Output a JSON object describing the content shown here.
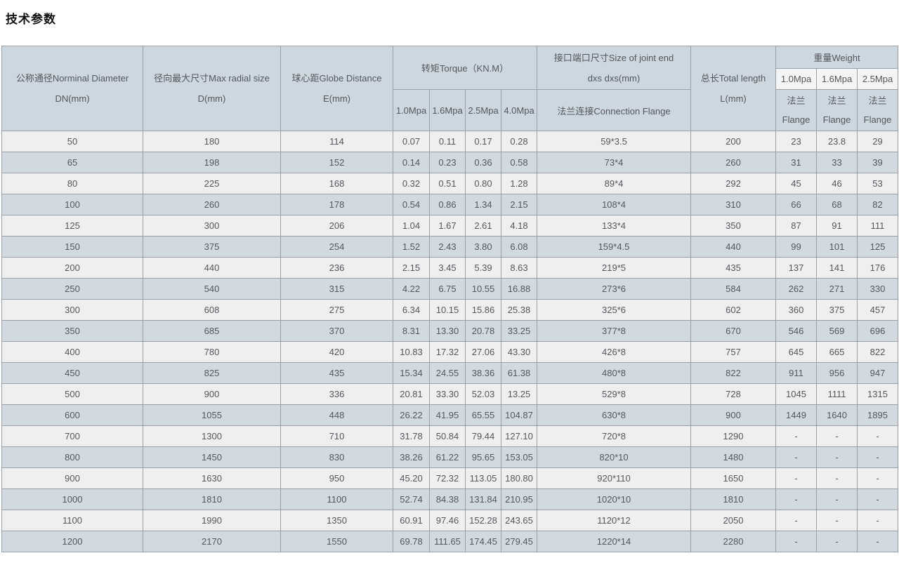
{
  "page": {
    "title": "技术参数"
  },
  "colors": {
    "header_bg": "#cdd7df",
    "subheader_bg": "#f4f4f4",
    "row_light_bg": "#efefef",
    "row_blue_bg": "#d2dae1",
    "border": "#9aa0a5",
    "text": "#54575c"
  },
  "table": {
    "header": {
      "dn_line1": "公称通径Norminal Diameter",
      "dn_line2": "DN(mm)",
      "d_line1": "径向最大尺寸Max radial size",
      "d_line2": "D(mm)",
      "e_line1": "球心距Globe Distance",
      "e_line2": "E(mm)",
      "torque": "转矩Torque（KN.M）",
      "torque_cols": [
        "1.0Mpa",
        "1.6Mpa",
        "2.5Mpa",
        "4.0Mpa"
      ],
      "joint_line1": "接口端口尺寸Size of joint end",
      "joint_line2": "dxs dxs(mm)",
      "joint_sub": "法兰连接Connection Flange",
      "length_line1": "总长Total length",
      "length_line2": "L(mm)",
      "weight": "重量Weight",
      "weight_cols": [
        "1.0Mpa",
        "1.6Mpa",
        "2.5Mpa"
      ],
      "flange_line1": "法兰",
      "flange_line2": "Flange"
    },
    "rows": [
      [
        "50",
        "180",
        "114",
        "0.07",
        "0.11",
        "0.17",
        "0.28",
        "59*3.5",
        "200",
        "23",
        "23.8",
        "29"
      ],
      [
        "65",
        "198",
        "152",
        "0.14",
        "0.23",
        "0.36",
        "0.58",
        "73*4",
        "260",
        "31",
        "33",
        "39"
      ],
      [
        "80",
        "225",
        "168",
        "0.32",
        "0.51",
        "0.80",
        "1.28",
        "89*4",
        "292",
        "45",
        "46",
        "53"
      ],
      [
        "100",
        "260",
        "178",
        "0.54",
        "0.86",
        "1.34",
        "2.15",
        "108*4",
        "310",
        "66",
        "68",
        "82"
      ],
      [
        "125",
        "300",
        "206",
        "1.04",
        "1.67",
        "2.61",
        "4.18",
        "133*4",
        "350",
        "87",
        "91",
        "111"
      ],
      [
        "150",
        "375",
        "254",
        "1.52",
        "2.43",
        "3.80",
        "6.08",
        "159*4.5",
        "440",
        "99",
        "101",
        "125"
      ],
      [
        "200",
        "440",
        "236",
        "2.15",
        "3.45",
        "5.39",
        "8.63",
        "219*5",
        "435",
        "137",
        "141",
        "176"
      ],
      [
        "250",
        "540",
        "315",
        "4.22",
        "6.75",
        "10.55",
        "16.88",
        "273*6",
        "584",
        "262",
        "271",
        "330"
      ],
      [
        "300",
        "608",
        "275",
        "6.34",
        "10.15",
        "15.86",
        "25.38",
        "325*6",
        "602",
        "360",
        "375",
        "457"
      ],
      [
        "350",
        "685",
        "370",
        "8.31",
        "13.30",
        "20.78",
        "33.25",
        "377*8",
        "670",
        "546",
        "569",
        "696"
      ],
      [
        "400",
        "780",
        "420",
        "10.83",
        "17.32",
        "27.06",
        "43.30",
        "426*8",
        "757",
        "645",
        "665",
        "822"
      ],
      [
        "450",
        "825",
        "435",
        "15.34",
        "24.55",
        "38.36",
        "61.38",
        "480*8",
        "822",
        "911",
        "956",
        "947"
      ],
      [
        "500",
        "900",
        "336",
        "20.81",
        "33.30",
        "52.03",
        "13.25",
        "529*8",
        "728",
        "1045",
        "1111",
        "1315"
      ],
      [
        "600",
        "1055",
        "448",
        "26.22",
        "41.95",
        "65.55",
        "104.87",
        "630*8",
        "900",
        "1449",
        "1640",
        "1895"
      ],
      [
        "700",
        "1300",
        "710",
        "31.78",
        "50.84",
        "79.44",
        "127.10",
        "720*8",
        "1290",
        "-",
        "-",
        "-"
      ],
      [
        "800",
        "1450",
        "830",
        "38.26",
        "61.22",
        "95.65",
        "153.05",
        "820*10",
        "1480",
        "-",
        "-",
        "-"
      ],
      [
        "900",
        "1630",
        "950",
        "45.20",
        "72.32",
        "113.05",
        "180.80",
        "920*110",
        "1650",
        "-",
        "-",
        "-"
      ],
      [
        "1000",
        "1810",
        "1100",
        "52.74",
        "84.38",
        "131.84",
        "210.95",
        "1020*10",
        "1810",
        "-",
        "-",
        "-"
      ],
      [
        "1100",
        "1990",
        "1350",
        "60.91",
        "97.46",
        "152.28",
        "243.65",
        "1120*12",
        "2050",
        "-",
        "-",
        "-"
      ],
      [
        "1200",
        "2170",
        "1550",
        "69.78",
        "111.65",
        "174.45",
        "279.45",
        "1220*14",
        "2280",
        "-",
        "-",
        "-"
      ]
    ]
  }
}
